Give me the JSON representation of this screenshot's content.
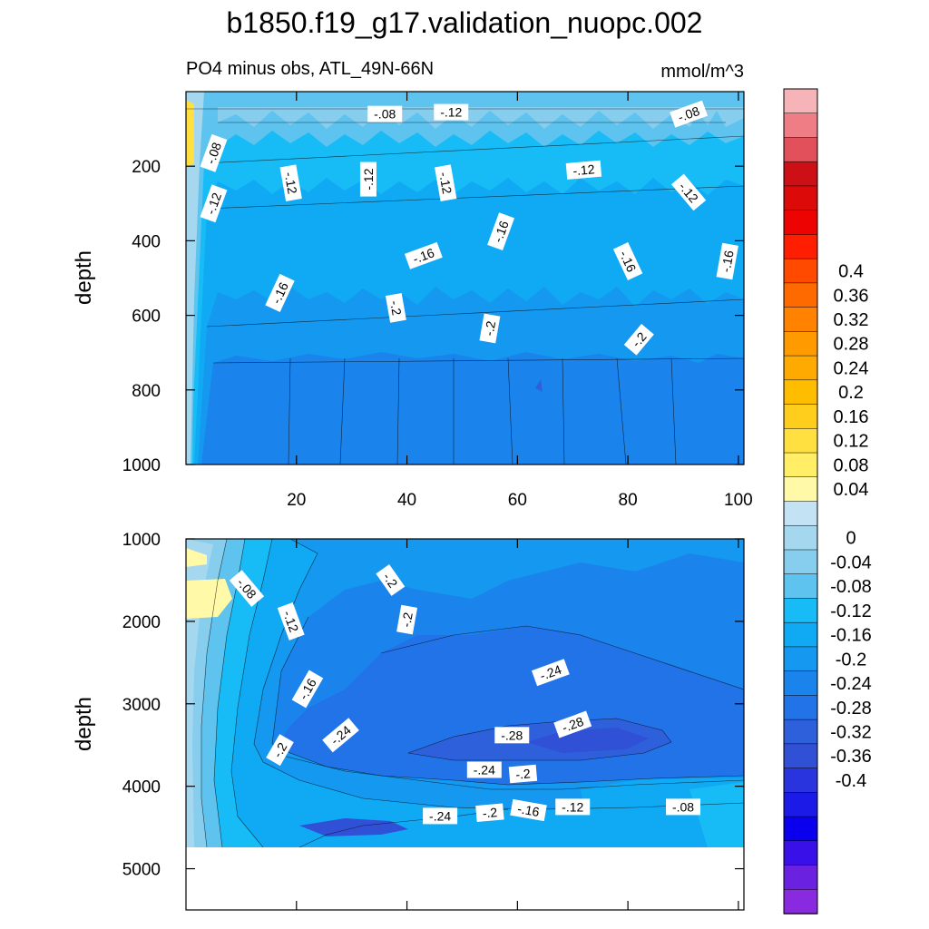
{
  "chart_data": {
    "type": "contour",
    "title": "b1850.f19_g17.validation_nuopc.002",
    "subtitle_left": "PO4 minus obs, ATL_49N-66N",
    "subtitle_right": "mmol/m^3",
    "xrange": [
      0,
      101
    ],
    "xticks": [
      20,
      40,
      60,
      80,
      100
    ],
    "colorbar": {
      "levels": [
        0.4,
        0.36,
        0.32,
        0.28,
        0.24,
        0.2,
        0.16,
        0.12,
        0.08,
        0.04,
        0,
        -0.04,
        -0.08,
        -0.12,
        -0.16,
        -0.2,
        -0.24,
        -0.28,
        -0.32,
        -0.36,
        -0.4
      ],
      "labels": [
        "0.4",
        "0.36",
        "0.32",
        "0.28",
        "0.24",
        "0.2",
        "0.16",
        "0.12",
        "0.08",
        "0.04",
        "0",
        "-0.04",
        "-0.08",
        "-0.12",
        "-0.16",
        "-0.2",
        "-0.24",
        "-0.28",
        "-0.32",
        "-0.36",
        "-0.4"
      ],
      "colors": [
        "#f7b4b8",
        "#ee7d86",
        "#e1505b",
        "#cc1016",
        "#dd0a0a",
        "#ee0303",
        "#ff1e00",
        "#ff4a00",
        "#ff6a00",
        "#ff8300",
        "#ff9a00",
        "#ffaa00",
        "#ffbd00",
        "#ffce1c",
        "#ffe040",
        "#ffee66",
        "#fff9a8",
        "#c3e2f3",
        "#a5d8ee",
        "#87cdee",
        "#5ec3ef",
        "#17bbf6",
        "#10aaf4",
        "#1498f0",
        "#1a84ec",
        "#2272e8",
        "#2f60dc",
        "#3050d6",
        "#2a34de",
        "#1b1ae6",
        "#0a00ee",
        "#3a10e8",
        "#6a22e0",
        "#8a2ae0"
      ]
    },
    "panels": [
      {
        "name": "upper",
        "ylabel": "depth",
        "yrange": [
          0,
          1000
        ],
        "yticks": [
          200,
          400,
          600,
          800,
          1000
        ],
        "contour_labels": [
          {
            "text": "-.08",
            "x": 36,
            "y": 60,
            "rot": 0
          },
          {
            "text": "-.12",
            "x": 48,
            "y": 55,
            "rot": 0
          },
          {
            "text": "-.08",
            "x": 91,
            "y": 60,
            "rot": -20
          },
          {
            "text": "-.08",
            "x": 5,
            "y": 165,
            "rot": -70
          },
          {
            "text": "-.12",
            "x": 5,
            "y": 300,
            "rot": -70
          },
          {
            "text": "-.12",
            "x": 19,
            "y": 245,
            "rot": 80
          },
          {
            "text": "-.12",
            "x": 33,
            "y": 235,
            "rot": -90
          },
          {
            "text": "-.12",
            "x": 47,
            "y": 245,
            "rot": 80
          },
          {
            "text": "-.12",
            "x": 72,
            "y": 210,
            "rot": -5
          },
          {
            "text": "-.12",
            "x": 91,
            "y": 270,
            "rot": 50
          },
          {
            "text": "-.16",
            "x": 57,
            "y": 375,
            "rot": -70
          },
          {
            "text": "-.16",
            "x": 43,
            "y": 440,
            "rot": -20
          },
          {
            "text": "-.16",
            "x": 80,
            "y": 455,
            "rot": 65
          },
          {
            "text": "-.16",
            "x": 98,
            "y": 455,
            "rot": -80
          },
          {
            "text": "-.16",
            "x": 17,
            "y": 540,
            "rot": -65
          },
          {
            "text": "-.2",
            "x": 38,
            "y": 580,
            "rot": 80
          },
          {
            "text": "-.2",
            "x": 55,
            "y": 635,
            "rot": -80
          },
          {
            "text": "-.2",
            "x": 82,
            "y": 665,
            "rot": -50
          }
        ]
      },
      {
        "name": "lower",
        "ylabel": "depth",
        "yrange": [
          1000,
          5500
        ],
        "yticks": [
          1000,
          2000,
          3000,
          4000,
          5000
        ],
        "contour_labels": [
          {
            "text": "-.08",
            "x": 11,
            "y": 1600,
            "rot": 50
          },
          {
            "text": "-.12",
            "x": 19,
            "y": 2000,
            "rot": 70
          },
          {
            "text": "-.2",
            "x": 37,
            "y": 1500,
            "rot": 55
          },
          {
            "text": "-.2",
            "x": 40,
            "y": 1980,
            "rot": -80
          },
          {
            "text": "-.16",
            "x": 22,
            "y": 2820,
            "rot": -60
          },
          {
            "text": "-.24",
            "x": 66,
            "y": 2620,
            "rot": -20
          },
          {
            "text": "-.24",
            "x": 28,
            "y": 3380,
            "rot": -40
          },
          {
            "text": "-.2",
            "x": 17,
            "y": 3560,
            "rot": -60
          },
          {
            "text": "-.28",
            "x": 59,
            "y": 3380,
            "rot": 0
          },
          {
            "text": "-.28",
            "x": 70,
            "y": 3250,
            "rot": -20
          },
          {
            "text": "-.24",
            "x": 54,
            "y": 3800,
            "rot": 0
          },
          {
            "text": "-.2",
            "x": 61,
            "y": 3850,
            "rot": -5
          },
          {
            "text": "-.24",
            "x": 46,
            "y": 4360,
            "rot": 0
          },
          {
            "text": "-.2",
            "x": 55,
            "y": 4320,
            "rot": -5
          },
          {
            "text": "-.16",
            "x": 62,
            "y": 4290,
            "rot": 10
          },
          {
            "text": "-.12",
            "x": 70,
            "y": 4250,
            "rot": 0
          },
          {
            "text": "-.08",
            "x": 90,
            "y": 4250,
            "rot": 0
          }
        ]
      }
    ]
  }
}
